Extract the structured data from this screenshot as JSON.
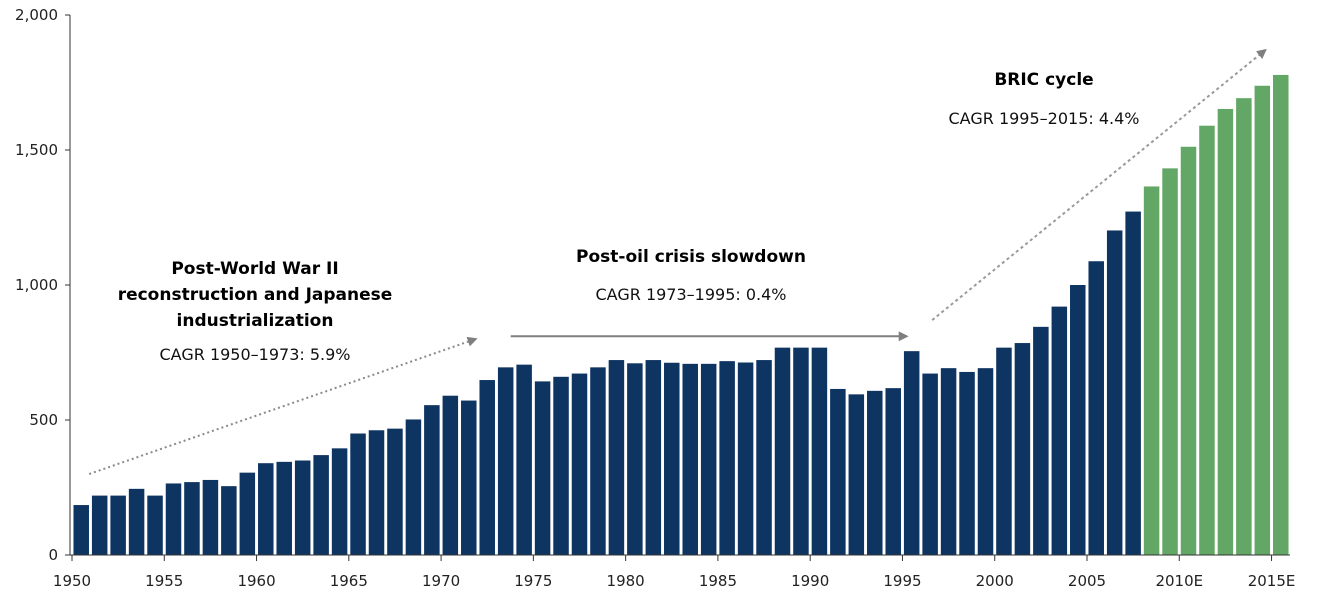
{
  "chart_data": {
    "type": "bar",
    "title": "",
    "xlabel": "",
    "ylabel": "",
    "ylim": [
      0,
      2000
    ],
    "yticks": [
      "0",
      "500",
      "1,000",
      "1,500",
      "2,000"
    ],
    "xtick_labels": [
      "1950",
      "1955",
      "1960",
      "1965",
      "1970",
      "1975",
      "1980",
      "1985",
      "1990",
      "1995",
      "2000",
      "2005",
      "2010E",
      "2015E"
    ],
    "categories": [
      "1950",
      "1951",
      "1952",
      "1953",
      "1954",
      "1955",
      "1956",
      "1957",
      "1958",
      "1959",
      "1960",
      "1961",
      "1962",
      "1963",
      "1964",
      "1965",
      "1966",
      "1967",
      "1968",
      "1969",
      "1970",
      "1971",
      "1972",
      "1973",
      "1974",
      "1975",
      "1976",
      "1977",
      "1978",
      "1979",
      "1980",
      "1981",
      "1982",
      "1983",
      "1984",
      "1985",
      "1986",
      "1987",
      "1988",
      "1989",
      "1990",
      "1991",
      "1992",
      "1993",
      "1994",
      "1995",
      "1996",
      "1997",
      "1998",
      "1999",
      "2000",
      "2001",
      "2002",
      "2003",
      "2004",
      "2005",
      "2006",
      "2007",
      "2008E",
      "2009E",
      "2010E",
      "2011E",
      "2012E",
      "2013E",
      "2014E",
      "2015E"
    ],
    "values": [
      185,
      220,
      220,
      245,
      220,
      265,
      270,
      278,
      255,
      305,
      340,
      345,
      350,
      370,
      395,
      450,
      462,
      468,
      502,
      555,
      590,
      572,
      648,
      695,
      705,
      643,
      660,
      672,
      695,
      722,
      710,
      722,
      712,
      708,
      708,
      718,
      713,
      722,
      768,
      768,
      768,
      615,
      595,
      608,
      618,
      755,
      672,
      692,
      678,
      692,
      768,
      785,
      845,
      920,
      1000,
      1088,
      1202,
      1272,
      1365,
      1432,
      1512,
      1590,
      1652,
      1692,
      1738,
      1778
    ],
    "series_colors": {
      "actual": "#0e3461",
      "estimate": "#63a766"
    },
    "annotations": [
      {
        "lines": [
          "Post-World War II",
          "reconstruction and Japanese",
          "industrialization"
        ],
        "sub": "CAGR 1950–1973: 5.9%"
      },
      {
        "lines": [
          "Post-oil crisis slowdown"
        ],
        "sub": "CAGR 1973–1995: 0.4%"
      },
      {
        "lines": [
          "BRIC cycle"
        ],
        "sub": "CAGR 1995–2015: 4.4%"
      }
    ],
    "grid": false,
    "legend": "none"
  }
}
